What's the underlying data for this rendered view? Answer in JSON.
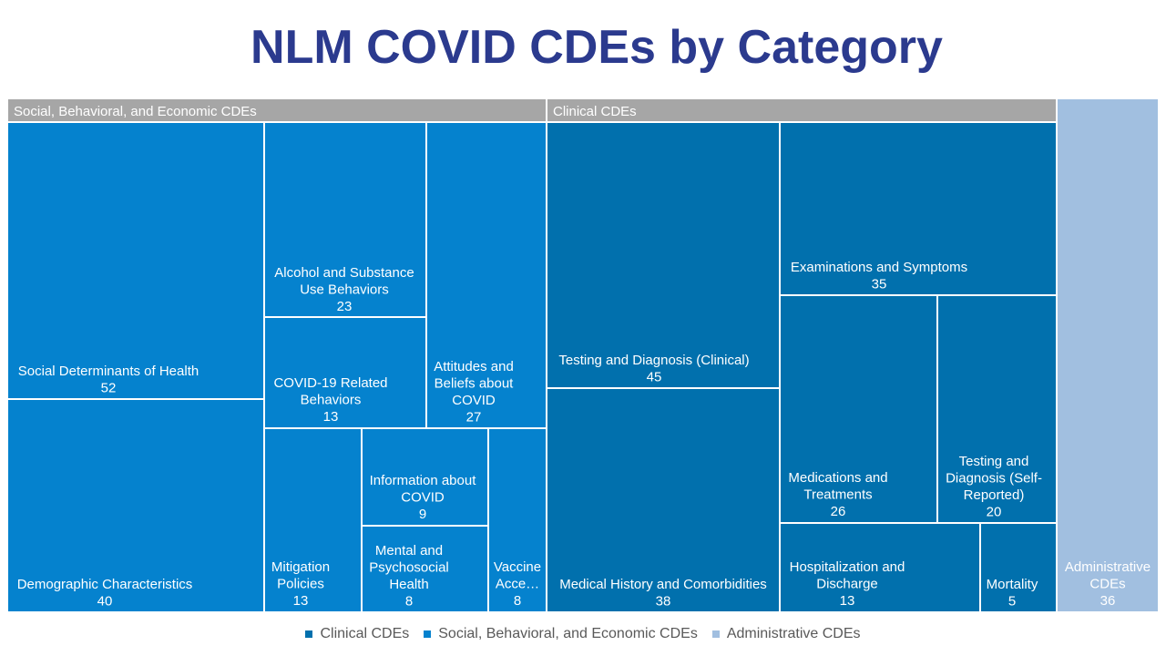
{
  "chart_data": {
    "type": "treemap",
    "title": "NLM COVID CDEs by Category",
    "groups": [
      {
        "name": "Social, Behavioral, and Economic CDEs",
        "header": "Social, Behavioral, and Economic CDEs",
        "color": "#0582ce",
        "items": [
          {
            "label": "Social Determinants of Health",
            "value": 52
          },
          {
            "label": "Demographic Characteristics",
            "value": 40
          },
          {
            "label": "Alcohol and Substance Use Behaviors",
            "value": 23
          },
          {
            "label": "COVID-19 Related Behaviors",
            "value": 13
          },
          {
            "label": "Attitudes and Beliefs about COVID",
            "value": 27
          },
          {
            "label": "Mitigation Policies",
            "value": 13
          },
          {
            "label": "Information about COVID",
            "value": 9
          },
          {
            "label": "Mental and Psychosocial Health",
            "value": 8
          },
          {
            "label": "Vaccine Acce…",
            "value": 8
          }
        ]
      },
      {
        "name": "Clinical CDEs",
        "header": "Clinical CDEs",
        "color": "#0170ad",
        "items": [
          {
            "label": "Testing and Diagnosis (Clinical)",
            "value": 45
          },
          {
            "label": "Medical History and Comorbidities",
            "value": 38
          },
          {
            "label": "Examinations and Symptoms",
            "value": 35
          },
          {
            "label": "Medications and Treatments",
            "value": 26
          },
          {
            "label": "Testing and Diagnosis (Self-Reported)",
            "value": 20
          },
          {
            "label": "Hospitalization and Discharge",
            "value": 13
          },
          {
            "label": "Mortality",
            "value": 5
          }
        ]
      },
      {
        "name": "Administrative CDEs",
        "header": "",
        "color": "#a1bfe0",
        "items": [
          {
            "label": "Administrative CDEs",
            "value": 36
          }
        ]
      }
    ],
    "header_color": "#a6a6a6",
    "legend": {
      "position": "bottom",
      "entries": [
        {
          "name": "Clinical CDEs",
          "color": "#0170ad"
        },
        {
          "name": "Social, Behavioral, and Economic CDEs",
          "color": "#0582ce"
        },
        {
          "name": "Administrative CDEs",
          "color": "#a1bfe0"
        }
      ]
    }
  }
}
